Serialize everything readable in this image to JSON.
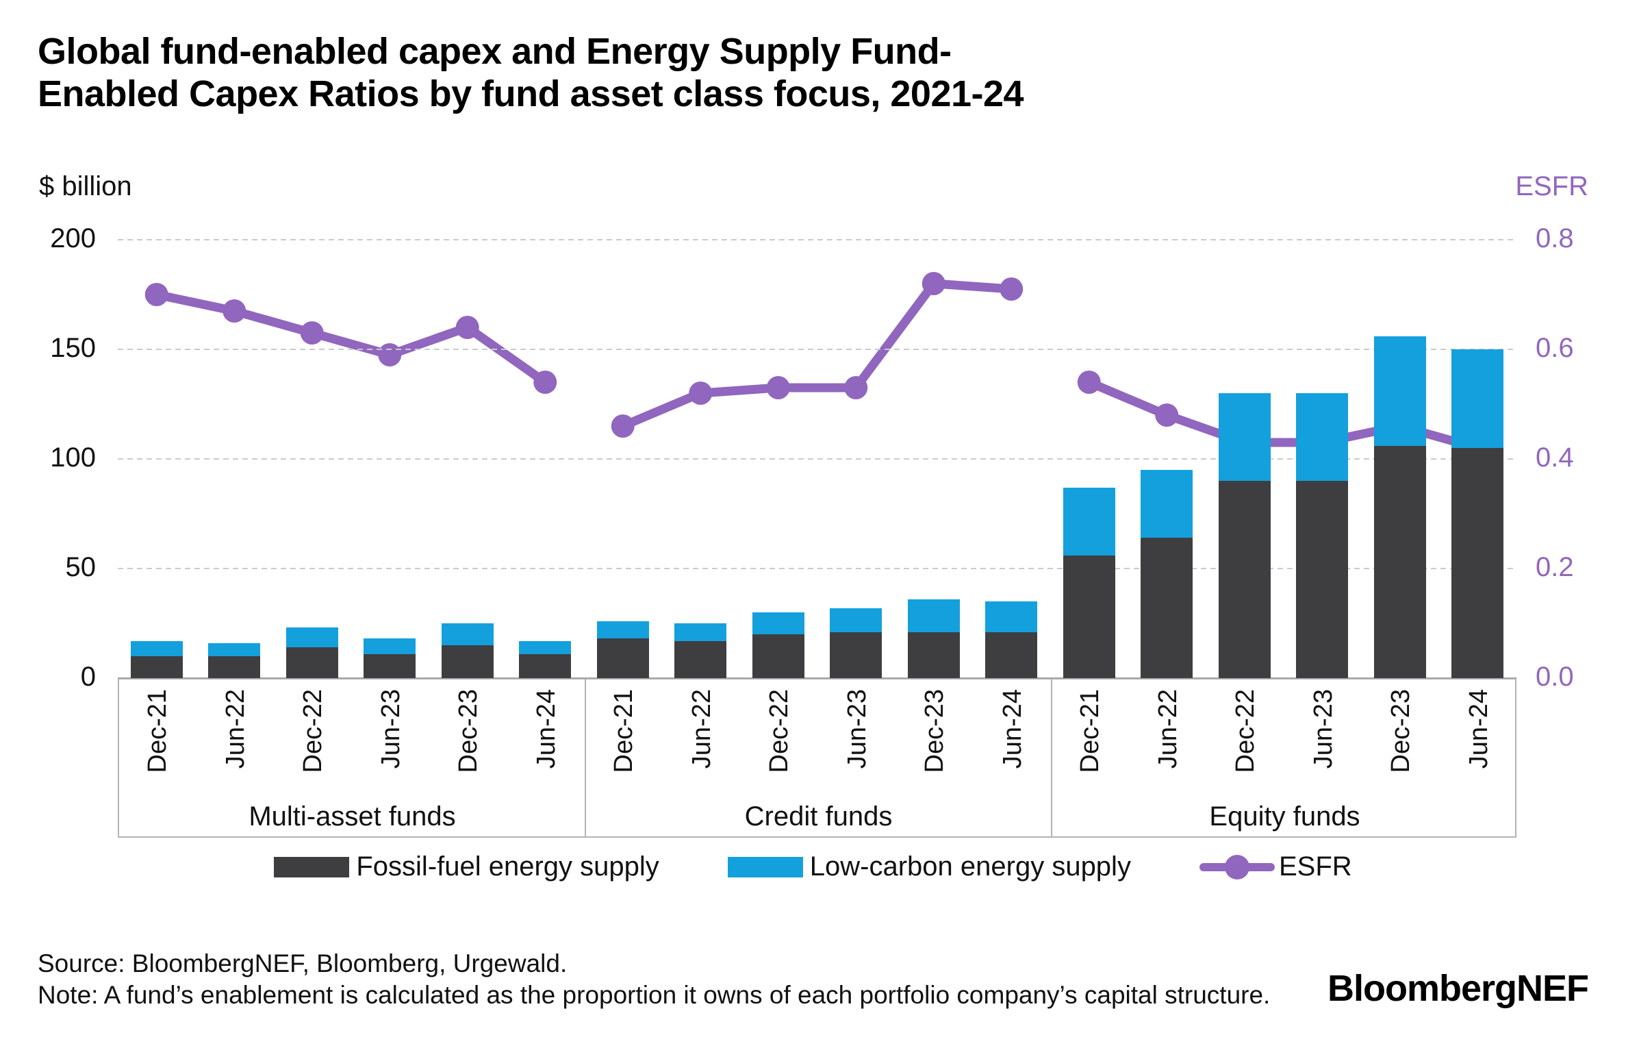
{
  "title": {
    "line1": "Global fund-enabled capex and Energy Supply Fund-",
    "line2": "Enabled Capex Ratios by fund asset class focus, 2021-24"
  },
  "left_axis_unit": "$ billion",
  "right_axis_unit": "ESFR",
  "legend": {
    "items": [
      {
        "label": "Fossil-fuel energy supply",
        "color": "#3E3E41"
      },
      {
        "label": "Low-carbon energy supply",
        "color": "#14A0DC"
      },
      {
        "label": "ESFR",
        "color": "#9166BE"
      }
    ]
  },
  "footer": {
    "source": "Source: BloombergNEF, Bloomberg, Urgewald.",
    "note": "Note: A fund’s enablement is calculated as the proportion it owns of each portfolio company’s capital structure.",
    "logo": "BloombergNEF"
  },
  "chart_data": {
    "type": "combo: stacked bar (left axis) + line (right axis)",
    "title": "Global fund-enabled capex and Energy Supply Fund-Enabled Capex Ratios by fund asset class focus, 2021-24",
    "group_labels": [
      "Multi-asset funds",
      "Credit funds",
      "Equity funds"
    ],
    "categories_per_group": [
      "Dec-21",
      "Jun-22",
      "Dec-22",
      "Jun-23",
      "Dec-23",
      "Jun-24"
    ],
    "left_axis": {
      "label": "$ billion",
      "ylim": [
        0,
        200
      ],
      "ticks": [
        200,
        150,
        100,
        50,
        0
      ],
      "grid": true
    },
    "right_axis": {
      "label": "ESFR",
      "ylim": [
        0.0,
        0.8
      ],
      "ticks": [
        0.8,
        0.6,
        0.4,
        0.2,
        0.0
      ]
    },
    "legend_position": "bottom",
    "series": [
      {
        "name": "Fossil-fuel energy supply",
        "type": "bar",
        "stack": "capex",
        "axis": "left",
        "color": "#3E3E41",
        "values_by_group": [
          [
            10,
            10,
            14,
            11,
            15,
            11
          ],
          [
            18,
            17,
            20,
            21,
            21,
            21
          ],
          [
            56,
            64,
            90,
            90,
            106,
            105
          ]
        ]
      },
      {
        "name": "Low-carbon energy supply",
        "type": "bar",
        "stack": "capex",
        "axis": "left",
        "color": "#14A0DC",
        "values_by_group": [
          [
            7,
            6,
            9,
            7,
            10,
            6
          ],
          [
            8,
            8,
            10,
            11,
            15,
            14
          ],
          [
            31,
            31,
            40,
            40,
            50,
            45
          ]
        ]
      },
      {
        "name": "ESFR",
        "type": "line",
        "axis": "right",
        "color": "#9166BE",
        "values_by_group": [
          [
            0.7,
            0.67,
            0.63,
            0.59,
            0.64,
            0.54
          ],
          [
            0.46,
            0.52,
            0.53,
            0.53,
            0.72,
            0.71
          ],
          [
            0.54,
            0.48,
            0.43,
            0.43,
            0.46,
            0.42
          ]
        ]
      }
    ],
    "style_colors": {
      "gridline": "#CBCBCB",
      "axis_line": "#A6A6A6",
      "right_axis_text": "#9166BE"
    }
  }
}
